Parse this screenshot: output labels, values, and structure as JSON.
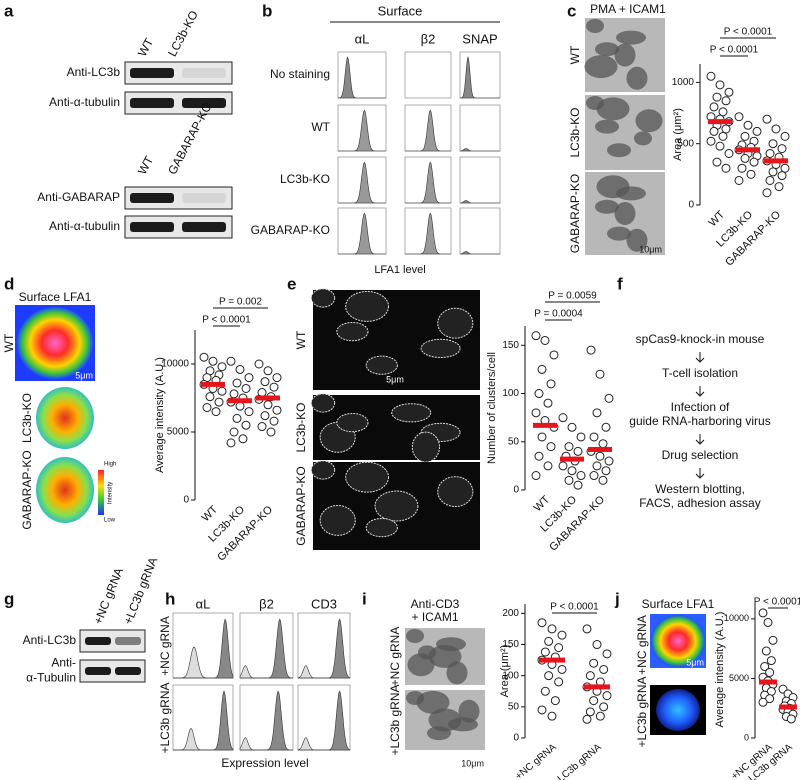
{
  "panels": {
    "a": {
      "label": "a",
      "blots": [
        {
          "lanes": [
            "WT",
            "LC3b-KO"
          ],
          "rows": [
            "Anti-LC3b",
            "Anti-α-tubulin"
          ]
        },
        {
          "lanes": [
            "WT",
            "GABARAP-KO"
          ],
          "rows": [
            "Anti-GABARAP",
            "Anti-α-tubulin"
          ]
        }
      ]
    },
    "b": {
      "label": "b",
      "header": "Surface",
      "columns": [
        "αL",
        "β2",
        "SNAP"
      ],
      "rows": [
        "No staining",
        "WT",
        "LC3b-KO",
        "GABARAP-KO"
      ],
      "xlabel": "LFA1 level"
    },
    "c": {
      "label": "c",
      "title": "PMA + ICAM1",
      "rows": [
        "WT",
        "LC3b-KO",
        "GABARAP-KO"
      ],
      "scale_bar": "10μm",
      "chart": {
        "type": "strip",
        "ylabel": "Area (μm²)",
        "ylim": [
          0,
          1150
        ],
        "yticks": [
          0,
          500,
          1000
        ],
        "categories": [
          "WT",
          "LC3b-KO",
          "GABARAP-KO"
        ],
        "values": [
          [
            1050,
            980,
            920,
            880,
            850,
            800,
            760,
            720,
            700,
            680,
            650,
            620,
            600,
            560,
            520,
            480,
            420,
            350,
            300
          ],
          [
            720,
            650,
            600,
            560,
            520,
            490,
            470,
            450,
            420,
            400,
            380,
            350,
            300,
            250,
            200
          ],
          [
            700,
            620,
            560,
            500,
            460,
            420,
            390,
            360,
            330,
            300,
            270,
            240,
            200,
            150,
            100
          ]
        ],
        "means": [
          680,
          450,
          360
        ],
        "mean_color": "#e8141c",
        "pvalues": [
          "P < 0.0001",
          "P < 0.0001"
        ]
      }
    },
    "d": {
      "label": "d",
      "title": "Surface LFA1",
      "rows": [
        "WT",
        "LC3b-KO",
        "GABARAP-KO"
      ],
      "scale_bar": "5μm",
      "colorbar": [
        "High",
        "Intensity",
        "Low"
      ],
      "chart": {
        "type": "strip",
        "ylabel": "Average intensity (A.U.)",
        "ylim": [
          0,
          12500
        ],
        "yticks": [
          0,
          5000,
          10000
        ],
        "categories": [
          "WT",
          "LC3b-KO",
          "GABARAP-KO"
        ],
        "values": [
          [
            10500,
            10200,
            9800,
            9500,
            9200,
            9000,
            8800,
            8500,
            8200,
            8000,
            7600,
            7200,
            6800,
            6500
          ],
          [
            10200,
            9600,
            9000,
            8600,
            8200,
            7800,
            7500,
            7200,
            6900,
            6500,
            6000,
            5500,
            5000,
            4500,
            4200
          ],
          [
            10000,
            9500,
            9000,
            8700,
            8300,
            7900,
            7600,
            7400,
            7000,
            6600,
            6200,
            5800,
            5400,
            5000
          ]
        ],
        "means": [
          8500,
          7300,
          7500
        ],
        "mean_color": "#e8141c",
        "pvalues": [
          "P < 0.0001",
          "P = 0.002"
        ]
      }
    },
    "e": {
      "label": "e",
      "rows": [
        "WT",
        "LC3b-KO",
        "GABARAP-KO"
      ],
      "scale_bar": "5μm",
      "chart": {
        "type": "strip",
        "ylabel": "Number of clusters/cell",
        "ylim": [
          0,
          170
        ],
        "yticks": [
          0,
          50,
          100,
          150
        ],
        "categories": [
          "WT",
          "LC3b-KO",
          "GABARAP-KO"
        ],
        "values": [
          [
            160,
            155,
            140,
            125,
            110,
            100,
            90,
            80,
            72,
            65,
            55,
            45,
            35,
            25,
            15
          ],
          [
            75,
            65,
            55,
            45,
            40,
            35,
            30,
            25,
            20,
            15,
            10,
            5
          ],
          [
            145,
            120,
            95,
            80,
            65,
            55,
            48,
            40,
            35,
            30,
            25,
            20,
            15,
            10
          ]
        ],
        "means": [
          67,
          32,
          42
        ],
        "mean_color": "#e8141c",
        "pvalues": [
          "P = 0.0004",
          "P = 0.0059"
        ]
      }
    },
    "f": {
      "label": "f",
      "steps": [
        [
          "spCas9-knock-in mouse"
        ],
        [
          "T-cell isolation"
        ],
        [
          "Infection of",
          "guide RNA-harboring virus"
        ],
        [
          "Drug selection"
        ],
        [
          "Western blotting,",
          "FACS, adhesion assay"
        ]
      ]
    },
    "g": {
      "label": "g",
      "lanes": [
        "+NC gRNA",
        "+LC3b gRNA"
      ],
      "rows": [
        [
          "Anti-LC3b"
        ],
        [
          "Anti-",
          "α-Tubulin"
        ]
      ]
    },
    "h": {
      "label": "h",
      "columns": [
        "αL",
        "β2",
        "CD3"
      ],
      "rows": [
        "+NC gRNA",
        "+LC3b gRNA"
      ],
      "xlabel": "Expression level"
    },
    "i": {
      "label": "i",
      "title": [
        "Anti-CD3",
        "+ ICAM1"
      ],
      "rows": [
        "+NC gRNA",
        "+LC3b gRNA"
      ],
      "scale_bar": "10μm",
      "chart": {
        "type": "strip",
        "ylabel": "Area (μm²)",
        "ylim": [
          0,
          215
        ],
        "yticks": [
          0,
          50,
          100,
          150,
          200
        ],
        "categories": [
          "+NC gRNA",
          "+LC3b gRNA"
        ],
        "values": [
          [
            185,
            175,
            165,
            155,
            145,
            138,
            130,
            125,
            118,
            110,
            100,
            90,
            75,
            60,
            45,
            35
          ],
          [
            175,
            150,
            135,
            120,
            110,
            100,
            90,
            82,
            75,
            68,
            60,
            50,
            42,
            35,
            30
          ]
        ],
        "means": [
          125,
          82
        ],
        "mean_color": "#e8141c",
        "pvalues": [
          "P < 0.0001"
        ]
      }
    },
    "j": {
      "label": "j",
      "title": "Surface LFA1",
      "rows": [
        "+NC gRNA",
        "+LC3b gRNA"
      ],
      "scale_bar": "5μm",
      "chart": {
        "type": "strip",
        "ylabel": "Average intensity (A.U.)",
        "ylim": [
          0,
          11500
        ],
        "yticks": [
          0,
          5000,
          10000
        ],
        "categories": [
          "+NC gRNA",
          "+LC3b gRNA"
        ],
        "values": [
          [
            10500,
            9700,
            8200,
            7300,
            6500,
            6000,
            5500,
            5100,
            4800,
            4500,
            4200,
            3900,
            3600,
            3300,
            3000
          ],
          [
            4100,
            3700,
            3400,
            3100,
            2900,
            2700,
            2500,
            2400,
            2200,
            2000,
            1800,
            1600
          ]
        ],
        "means": [
          4700,
          2600
        ],
        "mean_color": "#e8141c",
        "pvalues": [
          "P < 0.0001"
        ]
      }
    }
  }
}
